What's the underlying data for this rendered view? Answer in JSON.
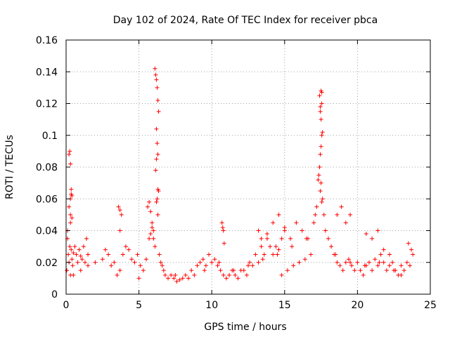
{
  "chart_data": {
    "type": "scatter",
    "title": "Day 102 of 2024, Rate Of TEC Index for receiver pbca",
    "xlabel": "GPS time / hours",
    "ylabel": "ROTI / TECUs",
    "xlim": [
      0,
      25
    ],
    "ylim": [
      0,
      0.16
    ],
    "xticks": [
      0,
      5,
      10,
      15,
      20,
      25
    ],
    "yticks": [
      0,
      0.02,
      0.04,
      0.06,
      0.08,
      0.1,
      0.12,
      0.14,
      0.16
    ],
    "xtick_labels": [
      "0",
      "5",
      "10",
      "15",
      "20",
      "25"
    ],
    "ytick_labels": [
      "0",
      "0.02",
      "0.04",
      "0.06",
      "0.08",
      "0.1",
      "0.12",
      "0.14",
      "0.16"
    ],
    "grid": true,
    "marker": "+",
    "color": "#ff0000",
    "series": [
      {
        "name": "ROTI",
        "x": [
          0.05,
          0.1,
          0.15,
          0.2,
          0.25,
          0.3,
          0.35,
          0.4,
          0.45,
          0.5,
          0.6,
          0.7,
          0.8,
          0.9,
          1.0,
          1.1,
          1.2,
          1.3,
          1.4,
          1.5,
          0.1,
          0.2,
          0.3,
          0.4,
          0.2,
          0.25,
          0.3,
          0.35,
          0.35,
          0.3,
          0.3,
          0.4,
          2.5,
          2.7,
          2.9,
          3.1,
          3.3,
          3.5,
          3.7,
          3.9,
          4.1,
          4.3,
          4.5,
          4.7,
          4.9,
          5.1,
          5.3,
          5.5,
          3.6,
          3.7,
          3.8,
          3.7,
          5.6,
          5.7,
          5.8,
          5.9,
          6.0,
          5.7,
          5.8,
          5.9,
          6.0,
          6.1,
          6.1,
          6.15,
          6.2,
          6.25,
          6.3,
          6.35,
          6.2,
          6.25,
          6.3,
          6.2,
          6.15,
          6.3,
          6.35,
          6.25,
          6.2,
          6.3,
          6.4,
          6.5,
          6.6,
          6.7,
          6.8,
          7.0,
          7.2,
          7.4,
          7.6,
          7.8,
          8.0,
          8.2,
          8.4,
          8.6,
          8.8,
          9.0,
          9.2,
          9.4,
          9.6,
          9.8,
          10.0,
          10.2,
          10.4,
          10.6,
          10.8,
          11.0,
          11.2,
          11.4,
          11.6,
          11.8,
          12.0,
          10.7,
          10.75,
          10.8,
          10.85,
          12.2,
          12.4,
          12.6,
          12.8,
          13.0,
          13.2,
          13.4,
          13.6,
          13.8,
          14.0,
          14.2,
          14.4,
          14.6,
          14.8,
          15.0,
          13.2,
          13.4,
          13.8,
          14.2,
          14.6,
          15.0,
          15.4,
          15.8,
          16.2,
          16.6,
          17.0,
          14.8,
          15.2,
          15.6,
          16.0,
          16.4,
          16.8,
          17.1,
          17.2,
          17.3,
          17.35,
          17.4,
          17.45,
          17.5,
          17.55,
          17.6,
          17.5,
          17.45,
          17.55,
          17.4,
          17.5,
          17.55,
          17.45,
          17.5,
          17.6,
          17.45,
          17.55,
          17.7,
          17.8,
          18.0,
          18.2,
          18.4,
          18.6,
          18.8,
          19.0,
          19.2,
          19.4,
          19.6,
          19.8,
          20.0,
          18.6,
          18.9,
          19.2,
          19.5,
          20.2,
          20.4,
          20.6,
          20.8,
          21.0,
          21.2,
          21.4,
          21.6,
          21.8,
          22.0,
          22.2,
          22.4,
          22.6,
          22.8,
          23.0,
          23.2,
          23.4,
          23.6,
          23.8,
          20.6,
          21.0,
          21.4,
          21.8,
          22.2,
          23.5,
          23.7,
          0.5,
          1.0,
          1.5,
          2.0,
          5.0,
          7.5,
          9.5,
          10.5,
          11.5,
          12.5,
          13.5,
          14.5,
          15.5,
          16.5,
          18.5,
          19.5,
          20.5,
          21.5,
          22.5,
          23.0
        ],
        "y": [
          0.015,
          0.035,
          0.025,
          0.02,
          0.03,
          0.012,
          0.028,
          0.022,
          0.018,
          0.026,
          0.03,
          0.025,
          0.02,
          0.028,
          0.024,
          0.022,
          0.03,
          0.02,
          0.035,
          0.025,
          0.04,
          0.055,
          0.06,
          0.062,
          0.088,
          0.09,
          0.082,
          0.066,
          0.063,
          0.05,
          0.045,
          0.048,
          0.022,
          0.028,
          0.025,
          0.018,
          0.02,
          0.012,
          0.015,
          0.025,
          0.03,
          0.028,
          0.022,
          0.02,
          0.025,
          0.018,
          0.015,
          0.022,
          0.055,
          0.053,
          0.05,
          0.04,
          0.055,
          0.058,
          0.052,
          0.045,
          0.04,
          0.035,
          0.038,
          0.042,
          0.035,
          0.03,
          0.142,
          0.138,
          0.135,
          0.13,
          0.122,
          0.115,
          0.104,
          0.095,
          0.088,
          0.085,
          0.078,
          0.066,
          0.065,
          0.06,
          0.058,
          0.05,
          0.025,
          0.02,
          0.018,
          0.015,
          0.012,
          0.01,
          0.012,
          0.01,
          0.008,
          0.009,
          0.01,
          0.012,
          0.01,
          0.015,
          0.012,
          0.018,
          0.02,
          0.022,
          0.018,
          0.025,
          0.02,
          0.022,
          0.018,
          0.015,
          0.012,
          0.01,
          0.012,
          0.015,
          0.012,
          0.01,
          0.015,
          0.045,
          0.042,
          0.04,
          0.032,
          0.015,
          0.012,
          0.02,
          0.018,
          0.025,
          0.02,
          0.03,
          0.025,
          0.035,
          0.03,
          0.025,
          0.03,
          0.028,
          0.035,
          0.04,
          0.04,
          0.035,
          0.038,
          0.045,
          0.05,
          0.042,
          0.035,
          0.045,
          0.04,
          0.035,
          0.045,
          0.012,
          0.015,
          0.018,
          0.02,
          0.022,
          0.025,
          0.05,
          0.055,
          0.072,
          0.075,
          0.08,
          0.088,
          0.093,
          0.1,
          0.102,
          0.11,
          0.115,
          0.12,
          0.125,
          0.128,
          0.127,
          0.118,
          0.07,
          0.06,
          0.065,
          0.058,
          0.05,
          0.04,
          0.035,
          0.03,
          0.025,
          0.02,
          0.018,
          0.015,
          0.02,
          0.022,
          0.018,
          0.015,
          0.02,
          0.05,
          0.055,
          0.045,
          0.05,
          0.015,
          0.012,
          0.018,
          0.02,
          0.015,
          0.022,
          0.018,
          0.025,
          0.02,
          0.015,
          0.018,
          0.02,
          0.015,
          0.012,
          0.018,
          0.015,
          0.02,
          0.018,
          0.025,
          0.038,
          0.035,
          0.04,
          0.028,
          0.025,
          0.032,
          0.028,
          0.012,
          0.015,
          0.018,
          0.02,
          0.01,
          0.012,
          0.015,
          0.02,
          0.015,
          0.018,
          0.022,
          0.025,
          0.03,
          0.035,
          0.025,
          0.02,
          0.018,
          0.02,
          0.015,
          0.012
        ]
      }
    ]
  }
}
